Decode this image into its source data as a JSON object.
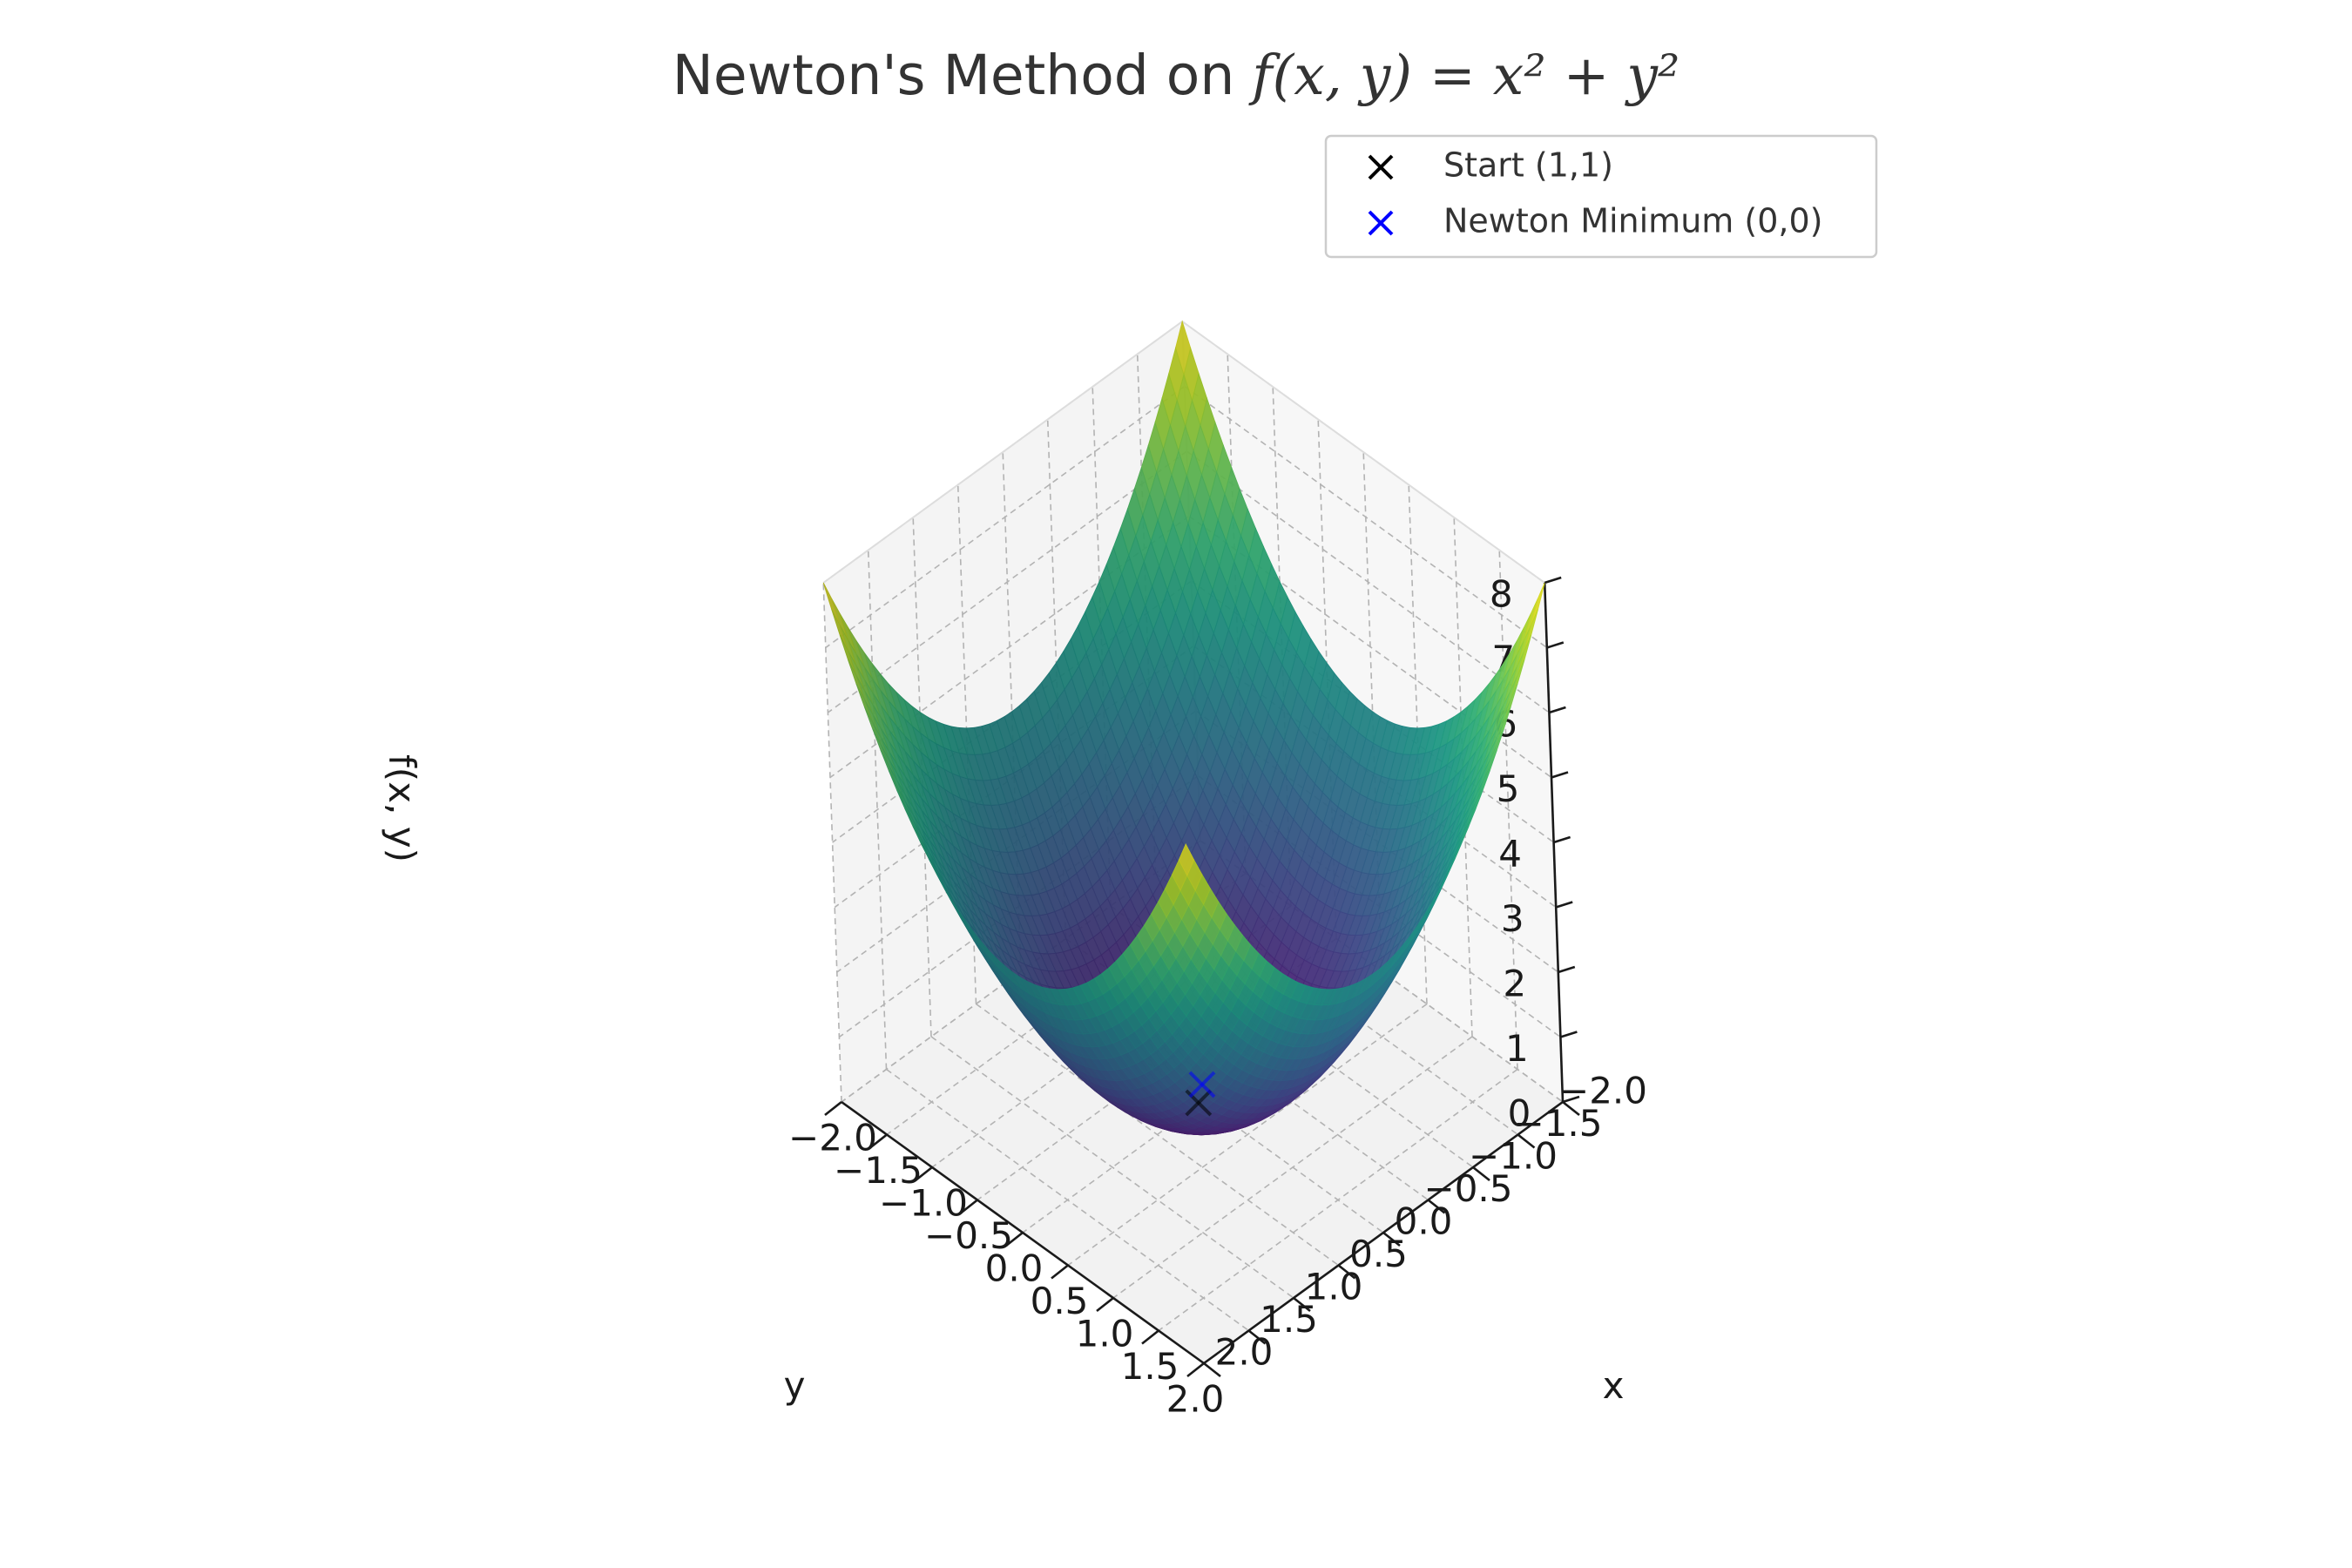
{
  "chart_data": {
    "type": "surface3d",
    "title": {
      "prefix": "Newton's Method on ",
      "math": "f(x, y) = x² + y²"
    },
    "function": "x^2 + y^2",
    "xlabel": "x",
    "ylabel": "y",
    "zlabel": "f(x, y)",
    "xlim": [
      -2,
      2
    ],
    "ylim": [
      -2,
      2
    ],
    "zlim": [
      0,
      8
    ],
    "x_ticks": [
      "−2.0",
      "−1.5",
      "−1.0",
      "−0.5",
      "0.0",
      "0.5",
      "1.0",
      "1.5",
      "2.0"
    ],
    "y_ticks": [
      "−2.0",
      "−1.5",
      "−1.0",
      "−0.5",
      "0.0",
      "0.5",
      "1.0",
      "1.5",
      "2.0"
    ],
    "z_ticks": [
      "0",
      "1",
      "2",
      "3",
      "4",
      "5",
      "6",
      "7",
      "8"
    ],
    "colormap": "viridis",
    "grid": true,
    "legend_position": "top-right",
    "points": [
      {
        "label": "Start (1,1)",
        "x": 1,
        "y": 1,
        "z": 2,
        "color": "#000000",
        "marker": "x"
      },
      {
        "label": "Newton Minimum (0,0)",
        "x": 0,
        "y": 0,
        "z": 0,
        "color": "#0000ff",
        "marker": "x"
      }
    ]
  }
}
